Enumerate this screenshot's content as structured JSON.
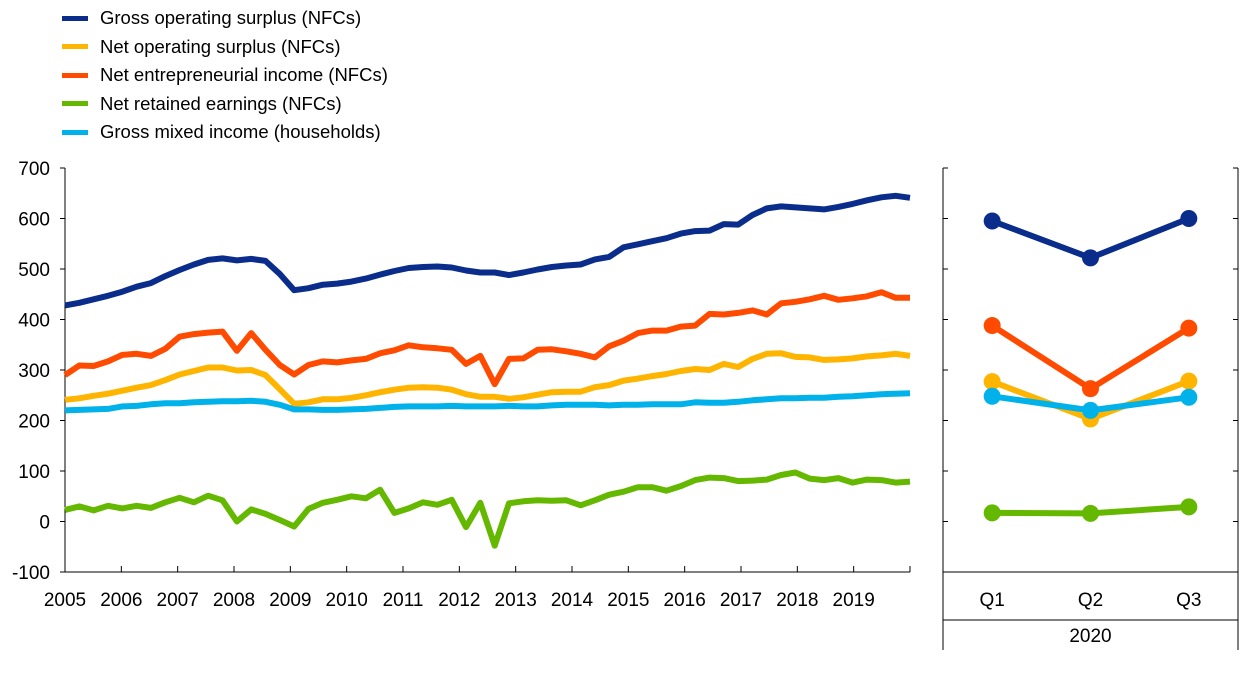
{
  "chart_data": [
    {
      "type": "line",
      "x_start": "2005",
      "frequency": "quarterly",
      "xlabels": [
        "2005",
        "2006",
        "2007",
        "2008",
        "2009",
        "2010",
        "2011",
        "2012",
        "2013",
        "2014",
        "2015",
        "2016",
        "2017",
        "2018",
        "2019"
      ],
      "ylim": [
        -100,
        700
      ],
      "yticks": [
        700,
        600,
        500,
        400,
        300,
        200,
        100,
        0,
        -100
      ],
      "grid": false,
      "legend_placement": "top-left",
      "series": [
        {
          "name": "Gross operating surplus (NFCs)",
          "color": "#0a2d8c",
          "values": [
            428,
            433,
            440,
            447,
            455,
            465,
            472,
            486,
            498,
            509,
            518,
            521,
            517,
            520,
            516,
            490,
            458,
            462,
            469,
            471,
            475,
            481,
            489,
            496,
            502,
            504,
            505,
            503,
            497,
            493,
            493,
            488,
            493,
            499,
            504,
            507,
            509,
            519,
            524,
            543,
            549,
            555,
            561,
            570,
            575,
            576,
            589,
            588,
            607,
            620,
            624,
            622,
            620,
            618,
            623,
            629,
            636,
            642,
            645,
            641
          ]
        },
        {
          "name": "Net operating surplus (NFCs)",
          "color": "#ffb400",
          "values": [
            241,
            244,
            249,
            253,
            259,
            265,
            270,
            280,
            291,
            298,
            305,
            305,
            299,
            300,
            290,
            262,
            233,
            236,
            242,
            242,
            245,
            250,
            256,
            261,
            265,
            266,
            265,
            261,
            252,
            247,
            247,
            243,
            246,
            251,
            256,
            257,
            257,
            266,
            270,
            279,
            283,
            288,
            292,
            298,
            302,
            300,
            312,
            306,
            322,
            332,
            333,
            326,
            325,
            320,
            321,
            323,
            327,
            329,
            332,
            328
          ]
        },
        {
          "name": "Net entrepreneurial income (NFCs)",
          "color": "#ff4b00",
          "values": [
            290,
            309,
            308,
            317,
            330,
            332,
            328,
            342,
            366,
            371,
            374,
            376,
            338,
            373,
            340,
            310,
            291,
            310,
            317,
            315,
            319,
            322,
            333,
            339,
            349,
            345,
            343,
            340,
            312,
            328,
            272,
            322,
            323,
            340,
            341,
            337,
            332,
            325,
            347,
            358,
            373,
            378,
            378,
            386,
            388,
            411,
            410,
            413,
            418,
            410,
            432,
            435,
            440,
            447,
            439,
            442,
            446,
            454,
            443,
            443
          ]
        },
        {
          "name": "Net retained earnings (NFCs)",
          "color": "#65b800",
          "values": [
            23,
            30,
            22,
            31,
            26,
            31,
            27,
            38,
            47,
            38,
            51,
            42,
            0,
            24,
            15,
            3,
            -10,
            25,
            37,
            43,
            50,
            46,
            63,
            17,
            26,
            38,
            33,
            43,
            -11,
            37,
            -48,
            36,
            40,
            42,
            41,
            42,
            32,
            42,
            53,
            59,
            68,
            68,
            61,
            70,
            82,
            87,
            86,
            80,
            81,
            83,
            92,
            97,
            85,
            82,
            86,
            77,
            83,
            82,
            77,
            79
          ]
        },
        {
          "name": "Gross mixed income (households)",
          "color": "#00b1ea",
          "values": [
            220,
            221,
            222,
            223,
            228,
            229,
            232,
            234,
            234,
            236,
            237,
            238,
            238,
            239,
            237,
            231,
            222,
            222,
            221,
            221,
            222,
            223,
            225,
            227,
            228,
            228,
            228,
            229,
            228,
            228,
            228,
            229,
            228,
            228,
            230,
            231,
            231,
            231,
            230,
            231,
            231,
            232,
            232,
            232,
            236,
            235,
            235,
            237,
            240,
            242,
            244,
            244,
            245,
            245,
            247,
            248,
            250,
            252,
            253,
            254
          ]
        }
      ]
    },
    {
      "type": "line",
      "categories": [
        "Q1",
        "Q2",
        "Q3"
      ],
      "group_label": "2020",
      "ylim": [
        -100,
        700
      ],
      "series": [
        {
          "name": "Gross operating surplus (NFCs)",
          "color": "#0a2d8c",
          "values": [
            595,
            522,
            600
          ]
        },
        {
          "name": "Net operating surplus (NFCs)",
          "color": "#ffb400",
          "values": [
            277,
            203,
            278
          ]
        },
        {
          "name": "Net entrepreneurial income (NFCs)",
          "color": "#ff4b00",
          "values": [
            388,
            263,
            383
          ]
        },
        {
          "name": "Net retained earnings (NFCs)",
          "color": "#65b800",
          "values": [
            17,
            16,
            29
          ]
        },
        {
          "name": "Gross mixed income (households)",
          "color": "#00b1ea",
          "values": [
            248,
            220,
            246
          ]
        }
      ]
    }
  ]
}
